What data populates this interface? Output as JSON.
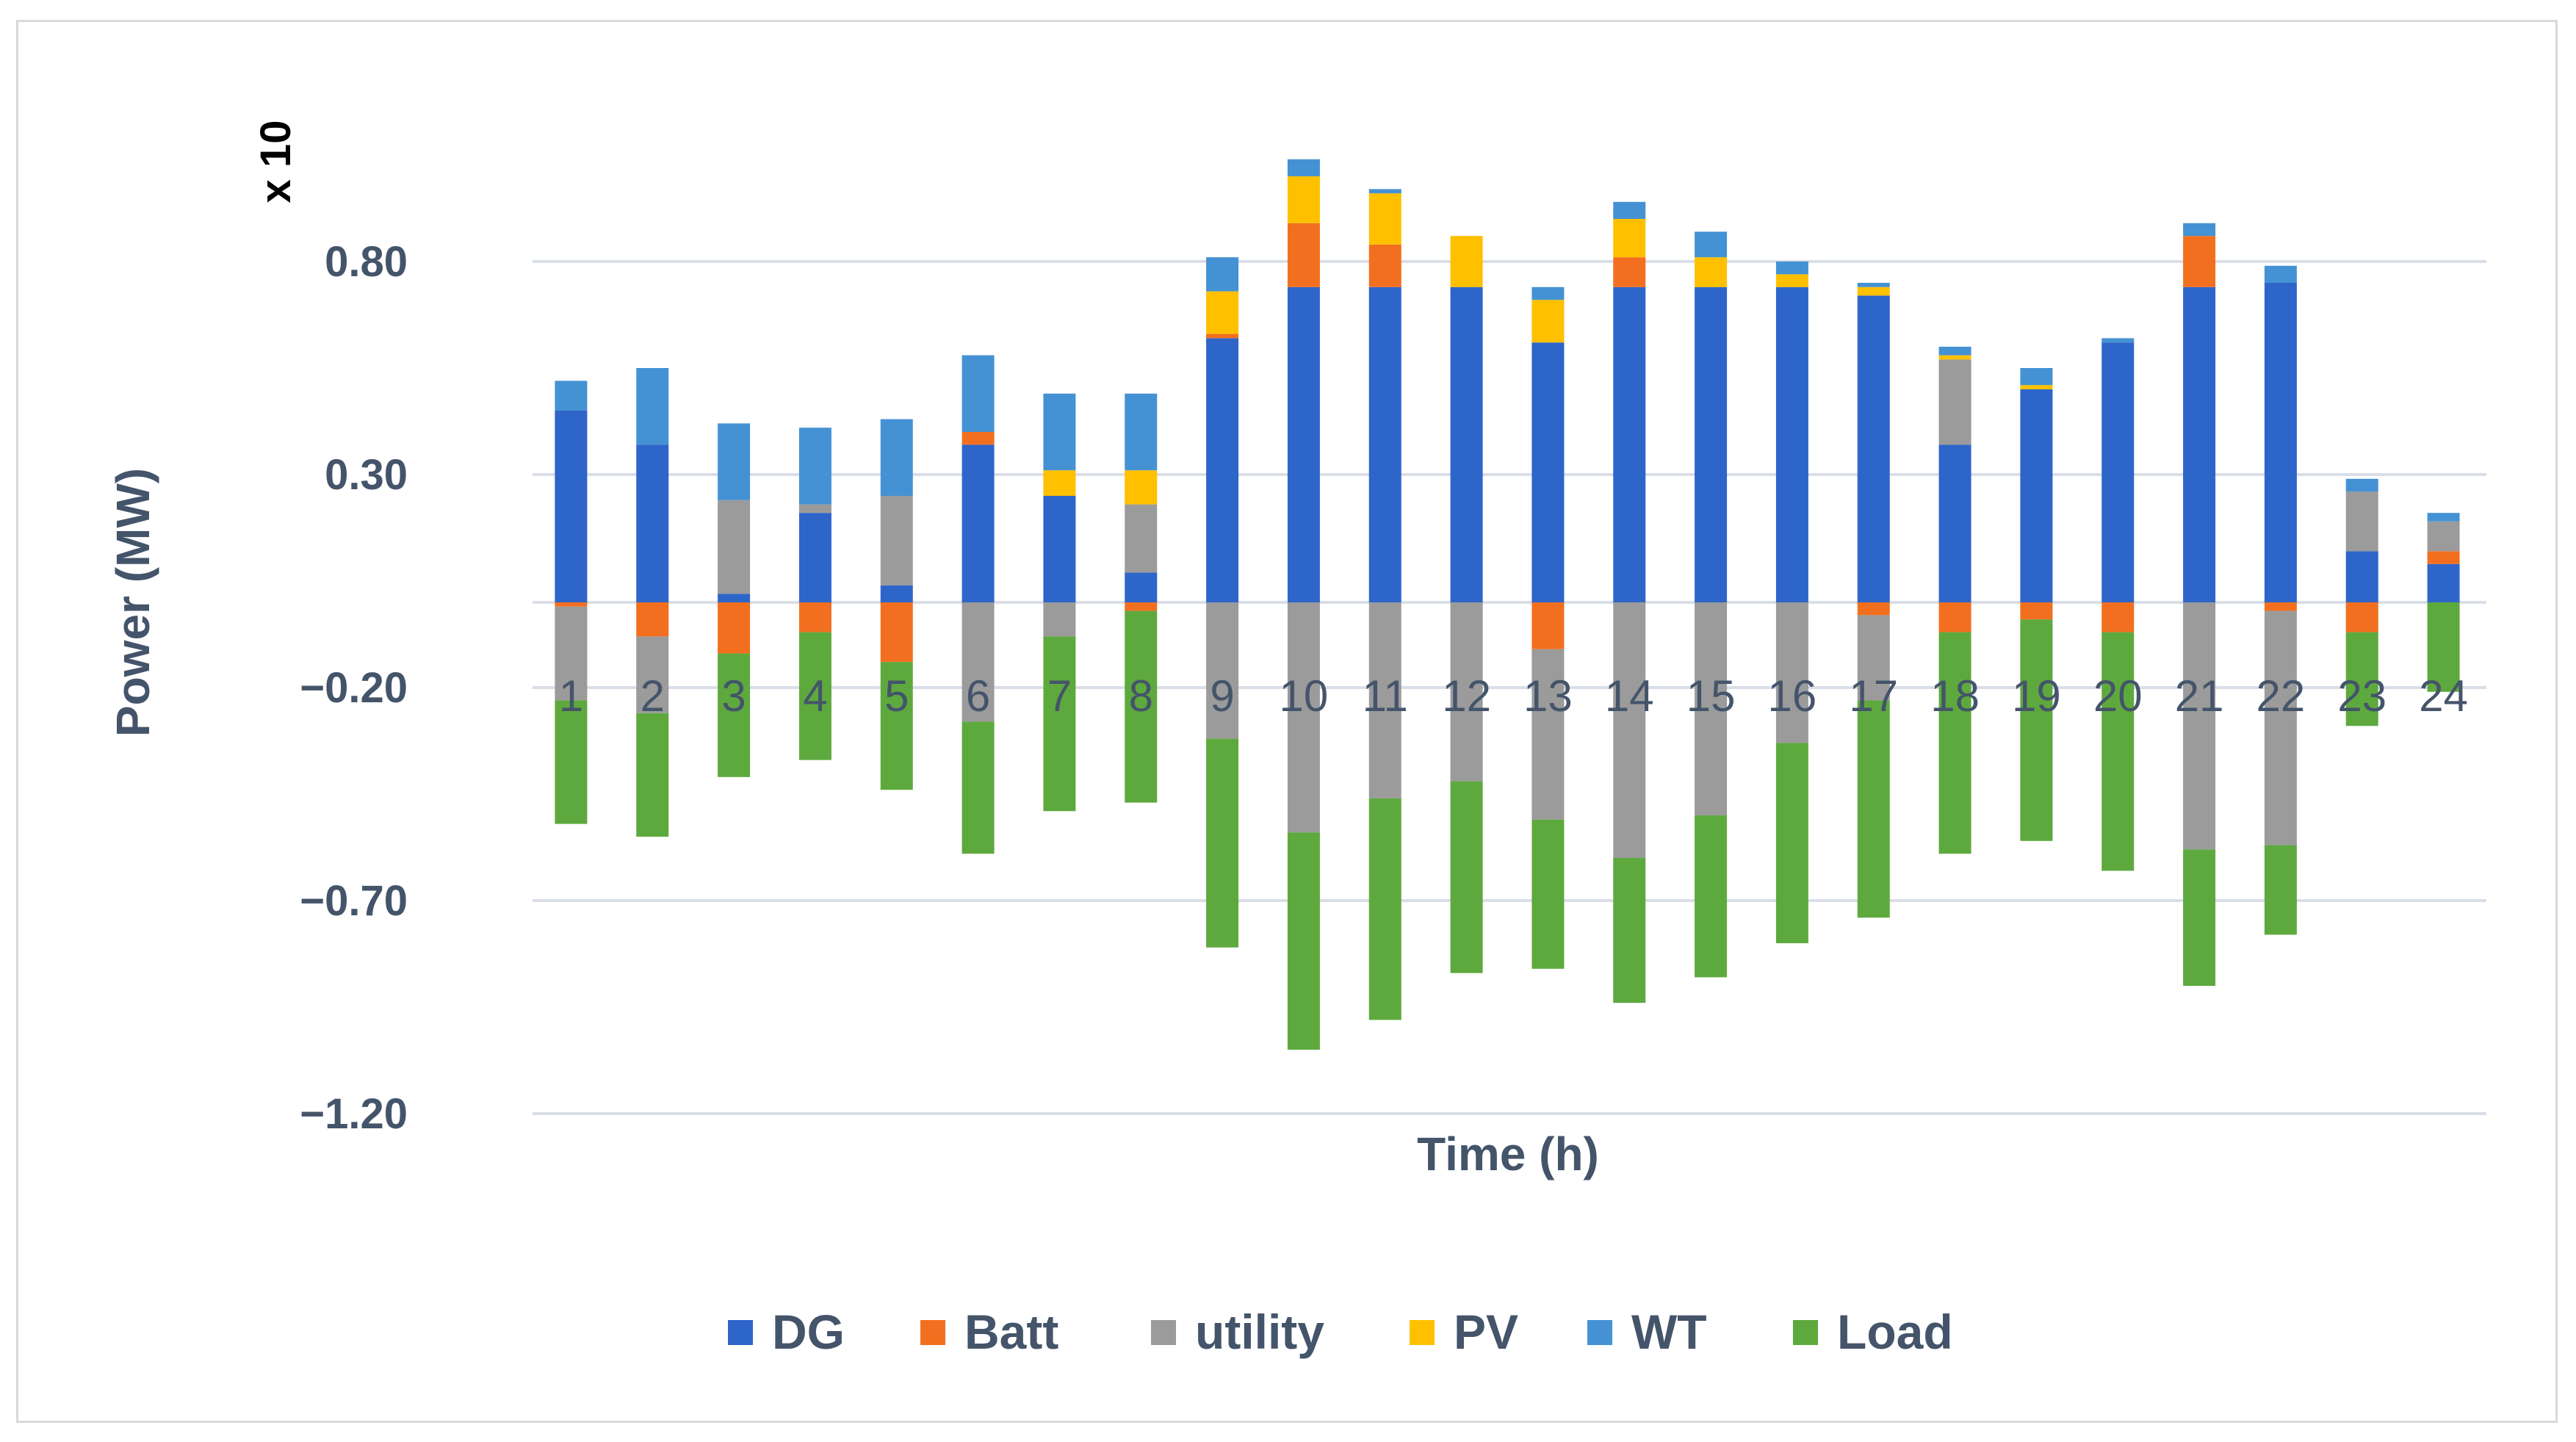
{
  "chart_data": {
    "type": "bar",
    "stacked": true,
    "title": "",
    "xlabel": "Time (h)",
    "ylabel": "Power (MW)",
    "multiplier_label": "x 10",
    "ylim": [
      -1.2,
      1.05
    ],
    "yticks": [
      0.8,
      0.3,
      -0.2,
      -0.7,
      -1.2
    ],
    "ytick_labels": [
      "0.80",
      "0.30",
      "−0.20",
      "−0.70",
      "−1.20"
    ],
    "grid": true,
    "legend_position": "bottom",
    "categories": [
      "1",
      "2",
      "3",
      "4",
      "5",
      "6",
      "7",
      "8",
      "9",
      "10",
      "11",
      "12",
      "13",
      "14",
      "15",
      "16",
      "17",
      "18",
      "19",
      "20",
      "21",
      "22",
      "23",
      "24"
    ],
    "series": [
      {
        "name": "DG",
        "color": "#2e65c9",
        "values": [
          0.45,
          0.37,
          0.02,
          0.21,
          0.04,
          0.37,
          0.25,
          0.07,
          0.62,
          0.74,
          0.74,
          0.74,
          0.61,
          0.74,
          0.74,
          0.74,
          0.72,
          0.37,
          0.5,
          0.61,
          0.74,
          0.75,
          0.12,
          0.09
        ]
      },
      {
        "name": "Batt",
        "color": "#f26f1f",
        "values": [
          -0.01,
          -0.08,
          -0.12,
          -0.07,
          -0.14,
          0.03,
          0,
          -0.02,
          0.01,
          0.15,
          0.1,
          0,
          -0.11,
          0.07,
          0,
          0,
          -0.03,
          -0.07,
          -0.04,
          -0.07,
          0.12,
          -0.02,
          -0.07,
          0.03
        ]
      },
      {
        "name": "utility",
        "color": "#9b9b9b",
        "values": [
          -0.22,
          -0.18,
          0.22,
          0.02,
          0.21,
          -0.28,
          -0.08,
          0.16,
          -0.32,
          -0.54,
          -0.46,
          -0.42,
          -0.4,
          -0.6,
          -0.5,
          -0.33,
          -0.2,
          0.2,
          0,
          0,
          -0.58,
          -0.55,
          0.14,
          0.07
        ]
      },
      {
        "name": "PV",
        "color": "#ffc000",
        "values": [
          0,
          0,
          0,
          0,
          0,
          0,
          0.06,
          0.08,
          0.1,
          0.11,
          0.12,
          0.12,
          0.1,
          0.09,
          0.07,
          0.03,
          0.02,
          0.01,
          0.01,
          0,
          0,
          0,
          0,
          0
        ]
      },
      {
        "name": "WT",
        "color": "#4492d4",
        "values": [
          0.07,
          0.18,
          0.18,
          0.18,
          0.18,
          0.18,
          0.18,
          0.18,
          0.08,
          0.04,
          0.01,
          0,
          0.03,
          0.04,
          0.06,
          0.03,
          0.01,
          0.02,
          0.04,
          0.01,
          0.03,
          0.04,
          0.03,
          0.02
        ]
      },
      {
        "name": "Load",
        "color": "#5ea93e",
        "values": [
          -0.29,
          -0.29,
          -0.29,
          -0.3,
          -0.3,
          -0.31,
          -0.41,
          -0.45,
          -0.49,
          -0.51,
          -0.52,
          -0.45,
          -0.35,
          -0.34,
          -0.38,
          -0.47,
          -0.51,
          -0.52,
          -0.52,
          -0.56,
          -0.32,
          -0.21,
          -0.22,
          -0.21
        ]
      }
    ]
  }
}
